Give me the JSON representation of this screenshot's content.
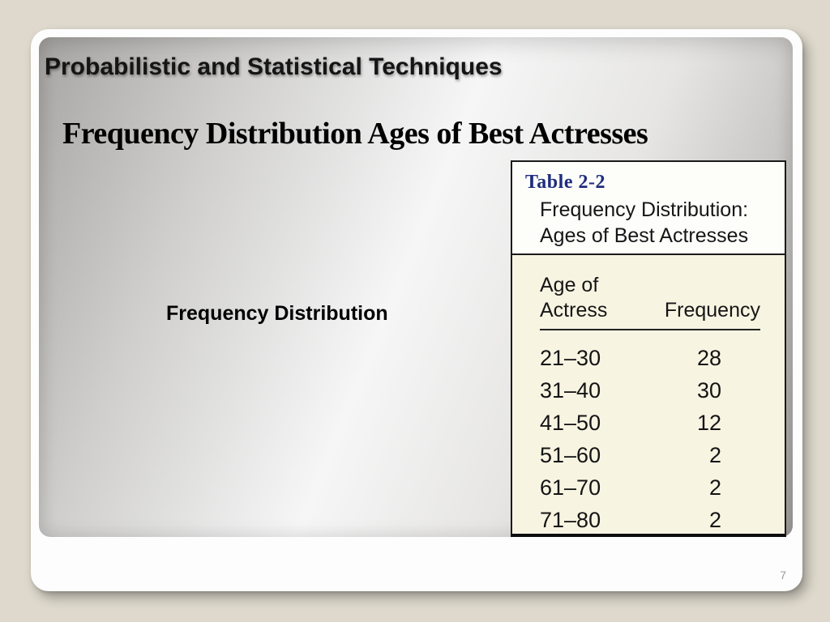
{
  "slide": {
    "header": "Probabilistic and Statistical Techniques",
    "title": "Frequency Distribution Ages of Best Actresses",
    "body_label": "Frequency Distribution",
    "page_number": "7"
  },
  "table": {
    "label": "Table 2-2",
    "caption": [
      "Frequency Distribution:",
      "Ages of Best Actresses"
    ],
    "columns": {
      "col1_line1": "Age of",
      "col1_line2": "Actress",
      "col2": "Frequency"
    },
    "rows": [
      {
        "age": "21–30",
        "frequency": "28"
      },
      {
        "age": "31–40",
        "frequency": "30"
      },
      {
        "age": "41–50",
        "frequency": "12"
      },
      {
        "age": "51–60",
        "frequency": "2"
      },
      {
        "age": "61–70",
        "frequency": "2"
      },
      {
        "age": "71–80",
        "frequency": "2"
      }
    ]
  },
  "colors": {
    "canvas_background": "#ded9cc",
    "slide_background": "#fdfdfd",
    "panel_gray_edge": "#a8a6a4",
    "panel_gray_center": "#f6f6f6",
    "table_label_blue": "#1f2d7e",
    "table_body_cream": "#f8f4e2",
    "table_border_black": "#1a1a1a",
    "page_number_gray": "#9b9b95",
    "text_black": "#151515"
  },
  "chart_data": {
    "type": "table",
    "title": "Frequency Distribution: Ages of Best Actresses",
    "columns": [
      "Age of Actress",
      "Frequency"
    ],
    "categories": [
      "21–30",
      "31–40",
      "41–50",
      "51–60",
      "61–70",
      "71–80"
    ],
    "values": [
      28,
      30,
      12,
      2,
      2,
      2
    ]
  }
}
